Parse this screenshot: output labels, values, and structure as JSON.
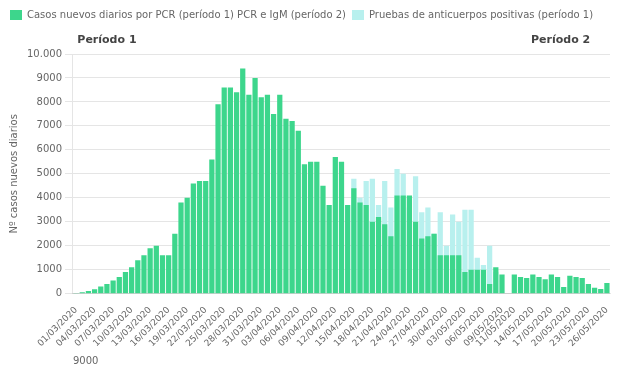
{
  "chart_data": {
    "type": "bar",
    "y_label": "Nº casos nuevos diarios",
    "categories": [
      "01/03/2020",
      null,
      null,
      "04/03/2020",
      null,
      null,
      "07/03/2020",
      null,
      null,
      "10/03/2020",
      null,
      null,
      "13/03/2020",
      null,
      null,
      "16/03/2020",
      null,
      null,
      "19/03/2020",
      null,
      null,
      "22/03/2020",
      null,
      null,
      "25/03/2020",
      null,
      null,
      "28/03/2020",
      null,
      null,
      "31/03/2020",
      null,
      null,
      "03/04/2020",
      null,
      null,
      "06/04/2020",
      null,
      null,
      "09/04/2020",
      null,
      null,
      "12/04/2020",
      null,
      null,
      "15/04/2020",
      null,
      null,
      "18/04/2020",
      null,
      null,
      "21/04/2020",
      null,
      null,
      "24/04/2020",
      null,
      null,
      "27/04/2020",
      null,
      null,
      "30/04/2020",
      null,
      null,
      "03/05/2020",
      null,
      null,
      "06/05/2020",
      null,
      null,
      "09/05/2020",
      null,
      "11/05/2020",
      null,
      null,
      "14/05/2020",
      null,
      null,
      "17/05/2020",
      null,
      null,
      "20/05/2020",
      null,
      null,
      "23/05/2020",
      null,
      null,
      "26/05/2020"
    ],
    "series": [
      {
        "name": "Casos nuevos diarios por PCR (período 1) PCR e IgM (período 2)",
        "color": "#3dd68c",
        "values": [
          30,
          60,
          110,
          180,
          300,
          400,
          550,
          700,
          900,
          1100,
          1400,
          1600,
          1900,
          2000,
          1600,
          1600,
          2500,
          3800,
          4000,
          4600,
          4700,
          4700,
          5600,
          7900,
          8600,
          8600,
          8400,
          9400,
          8300,
          9000,
          8200,
          8300,
          7500,
          8300,
          7300,
          7200,
          6800,
          5400,
          5500,
          5500,
          4500,
          3700,
          5700,
          5500,
          3700,
          4400,
          3800,
          3700,
          3000,
          3200,
          2900,
          2400,
          4100,
          4100,
          4100,
          3000,
          2300,
          2400,
          2500,
          1600,
          1600,
          1600,
          1600,
          900,
          1000,
          1000,
          1000,
          400,
          1100,
          800,
          null,
          800,
          700,
          650,
          800,
          700,
          600,
          800,
          700,
          280,
          750,
          700,
          650,
          400,
          250,
          200,
          450
        ]
      },
      {
        "name": "Pruebas de anticuerpos positivas (período 1)",
        "color": "#b8f0ee",
        "values": [
          0,
          0,
          0,
          0,
          0,
          0,
          0,
          0,
          0,
          0,
          0,
          0,
          0,
          0,
          0,
          0,
          0,
          0,
          0,
          0,
          0,
          0,
          0,
          0,
          0,
          0,
          0,
          0,
          0,
          0,
          0,
          0,
          0,
          0,
          0,
          0,
          0,
          0,
          0,
          0,
          0,
          0,
          0,
          0,
          0,
          4800,
          4000,
          4700,
          4800,
          3700,
          4700,
          3600,
          5200,
          5000,
          3600,
          4900,
          3400,
          3600,
          2500,
          3400,
          2000,
          3300,
          3000,
          3500,
          3500,
          1500,
          1200,
          2000,
          900,
          0,
          null,
          0,
          0,
          0,
          0,
          0,
          0,
          0,
          0,
          0,
          0,
          0,
          0,
          0,
          0,
          0,
          0
        ]
      }
    ],
    "ylim": [
      0,
      10000
    ],
    "yticks": [
      0,
      1000,
      2000,
      3000,
      4000,
      5000,
      6000,
      7000,
      8000,
      9000,
      {
        "value": 10000,
        "label": "10.000"
      }
    ],
    "grid": true,
    "legend": "upper left",
    "annotations": [
      "Período 1",
      "Período 2",
      "9000"
    ]
  }
}
